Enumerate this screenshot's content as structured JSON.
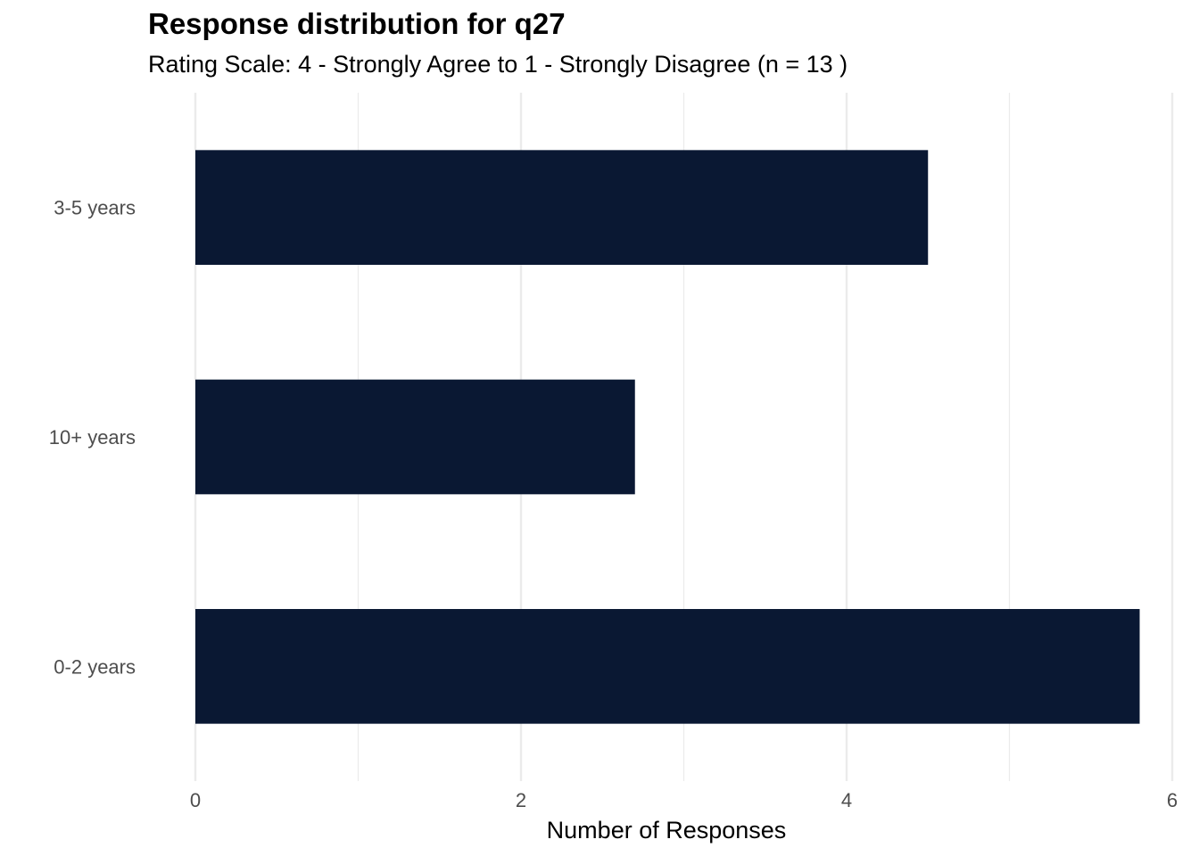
{
  "chart_data": {
    "type": "bar",
    "orientation": "horizontal",
    "title": "Response distribution for q27",
    "subtitle": "Rating Scale: 4 - Strongly Agree to 1 - Strongly Disagree (n = 13 )",
    "xlabel": "Number of Responses",
    "ylabel": "",
    "categories": [
      "3-5 years",
      "10+ years",
      "0-2 years"
    ],
    "values": [
      4.5,
      2.7,
      5.8
    ],
    "xlim": [
      0,
      6
    ],
    "x_ticks": [
      0,
      2,
      4,
      6
    ],
    "grid": true,
    "legend": "none",
    "bar_color": "#0a1833",
    "grid_color": "#ebebeb"
  }
}
